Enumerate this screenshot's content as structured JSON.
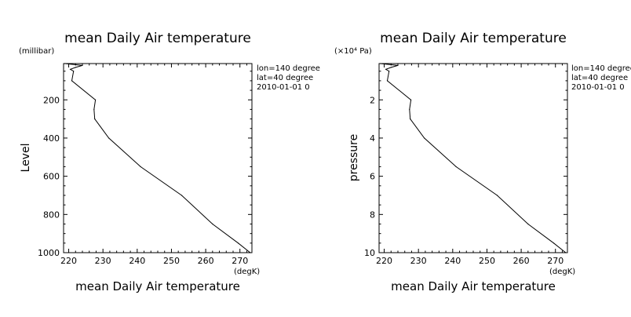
{
  "chart_data": [
    {
      "type": "line",
      "title": "mean Daily Air temperature",
      "xlabel": "mean Daily Air temperature",
      "xunit": "(degK)",
      "ylabel": "Level",
      "yunit": "(millibar)",
      "xlim": [
        218.5,
        273.5
      ],
      "ylim": [
        1000,
        10
      ],
      "y_inverted": true,
      "xticks": [
        "220",
        "230",
        "240",
        "250",
        "260",
        "270"
      ],
      "xtick_values": [
        220,
        230,
        240,
        250,
        260,
        270
      ],
      "yticks": [
        "200",
        "400",
        "600",
        "800",
        "1000"
      ],
      "ytick_values": [
        200,
        400,
        600,
        800,
        1000
      ],
      "annotations": [
        "lon=140 degree",
        "lat=40 degree",
        "2010-01-01 0"
      ],
      "x": [
        218.9,
        224,
        222,
        220.5,
        221.4,
        220.9,
        227.8,
        227.4,
        227.6,
        231.7,
        241,
        253,
        262,
        269.5,
        273
      ],
      "y": [
        10,
        20,
        30,
        40,
        50,
        100,
        200,
        250,
        300,
        400,
        550,
        700,
        850,
        950,
        1000
      ]
    },
    {
      "type": "line",
      "title": "mean Daily Air temperature",
      "xlabel": "mean Daily Air temperature",
      "xunit": "(degK)",
      "ylabel": "pressure",
      "yunit": "(×10⁴ Pa)",
      "xlim": [
        218.5,
        273.5
      ],
      "ylim": [
        10,
        0.1
      ],
      "y_inverted": true,
      "xticks": [
        "220",
        "230",
        "240",
        "250",
        "260",
        "270"
      ],
      "xtick_values": [
        220,
        230,
        240,
        250,
        260,
        270
      ],
      "yticks": [
        "2",
        "4",
        "6",
        "8",
        "10"
      ],
      "ytick_values": [
        2,
        4,
        6,
        8,
        10
      ],
      "annotations": [
        "lon=140 degree",
        "lat=40 degree",
        "2010-01-01 0"
      ],
      "x": [
        218.9,
        224,
        222,
        220.5,
        221.4,
        220.9,
        227.8,
        227.4,
        227.6,
        231.7,
        241,
        253,
        262,
        269.5,
        273
      ],
      "y": [
        0.1,
        0.2,
        0.3,
        0.4,
        0.5,
        1,
        2,
        2.5,
        3,
        4,
        5.5,
        7,
        8.5,
        9.5,
        10
      ]
    }
  ]
}
